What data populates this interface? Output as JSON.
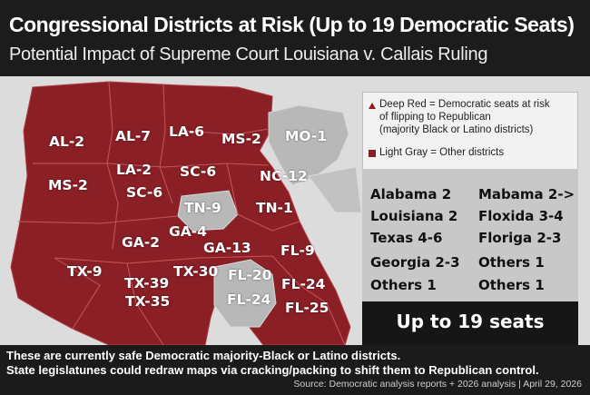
{
  "header": {
    "title": "Congressional Districts at Risk (Up to 19 Democratic Seats)",
    "subtitle": "Potential Impact of Supreme Court Louisiana v. Callais Ruling"
  },
  "colors": {
    "risk": "#8b1f26",
    "other": "#b5b5b5",
    "background": "#1a1a1a"
  },
  "map": {
    "labels": [
      "AL-2",
      "AL-7",
      "LA-6",
      "MS-2",
      "MO-1",
      "LA-2",
      "SC-6",
      "NC-12",
      "MS-2",
      "SC-6",
      "TN-9",
      "TN-1",
      "GA-4",
      "GA-2",
      "GA-13",
      "FL-9",
      "TX-9",
      "TX-30",
      "FL-20",
      "TX-39",
      "FL-24",
      "TX-35",
      "FL-24",
      "FL-25"
    ]
  },
  "legend": {
    "line1": "Deep Red = Democratic seats at risk",
    "line2": "of flipping to Republican",
    "line3": "(majority Black or Latino districts)",
    "line4": "Light Gray = Other districts",
    "icon1": "triangle-icon",
    "icon2": "square-icon"
  },
  "stats": {
    "left": [
      "Alabama 2",
      "Louisiana  2",
      "Texas  4-6",
      "Georgia 2-3",
      "Others 1"
    ],
    "right": [
      "Mabama 2->",
      "Floxida 3-4",
      "Floriga 2-3",
      "Others 1",
      "Others 1"
    ]
  },
  "total": "Up to 19 seats",
  "footer": {
    "line1": "These are currently safe Democratic majority-Black or Latino districts.",
    "line2": "State legislatunes could redraw maps via cracking/packing to shift them to Republican control.",
    "source": "Source: Democratic analysis reports + 2026 analysis | April 29, 2026"
  }
}
